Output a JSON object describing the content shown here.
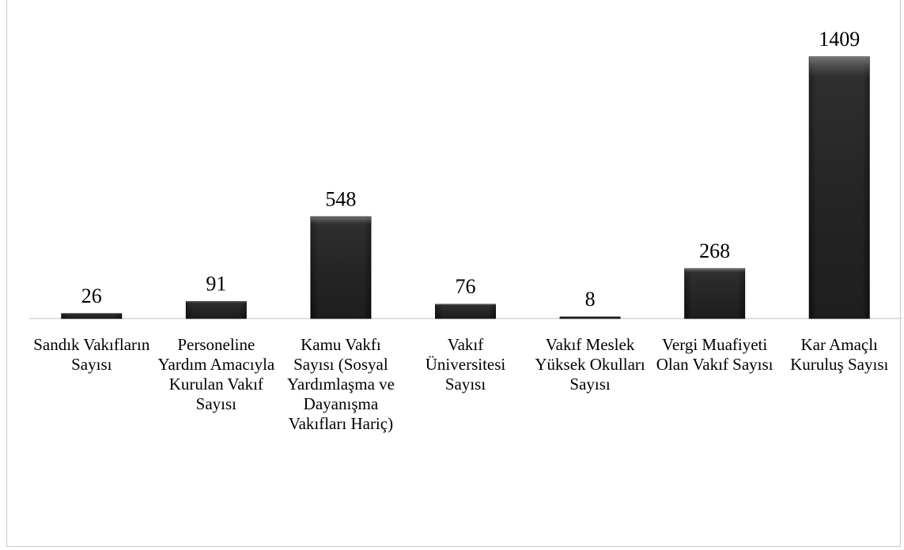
{
  "chart_data": {
    "type": "bar",
    "categories": [
      "Sandık Vakıfların Sayısı",
      "Personeline Yardım Amacıyla Kurulan Vakıf Sayısı",
      "Kamu Vakfı Sayısı (Sosyal Yardımlaşma ve Dayanışma Vakıfları Hariç)",
      "Vakıf Üniversitesi Sayısı",
      "Vakıf Meslek Yüksek Okulları Sayısı",
      "Vergi Muafiyeti Olan Vakıf Sayısı",
      "Kar Amaçlı Kuruluş Sayısı"
    ],
    "values": [
      26,
      91,
      548,
      76,
      8,
      268,
      1409
    ],
    "color": "#262626"
  }
}
